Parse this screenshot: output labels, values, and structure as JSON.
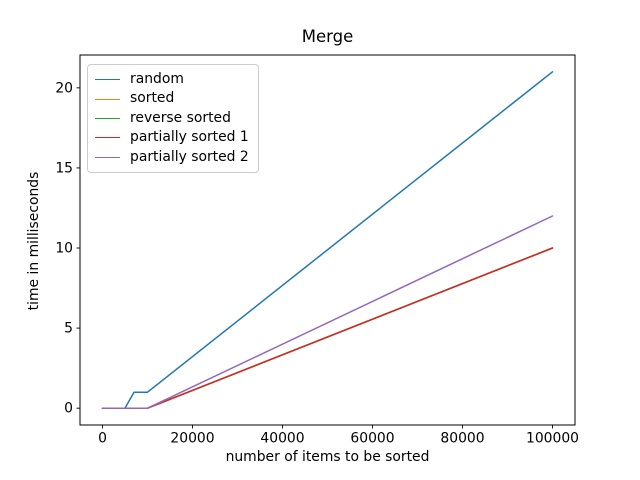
{
  "figure": {
    "background_color": "#ffffff",
    "axes_edge_color": "#000000",
    "legend_border_color": "#cccccc",
    "line_width": 1.5
  },
  "chart_data": {
    "type": "line",
    "title": "Merge",
    "xlabel": "number of items to be sorted",
    "ylabel": "time in milliseconds",
    "xlim": [
      -5000,
      105000
    ],
    "ylim": [
      -1.05,
      22.05
    ],
    "xticks": [
      0,
      20000,
      40000,
      60000,
      80000,
      100000
    ],
    "yticks": [
      0,
      5,
      10,
      15,
      20
    ],
    "grid": false,
    "legend_position": "upper left",
    "series": [
      {
        "name": "random",
        "color": "#1f77b4",
        "points": [
          [
            0,
            0
          ],
          [
            1000,
            0
          ],
          [
            3000,
            0
          ],
          [
            5000,
            0
          ],
          [
            7000,
            1
          ],
          [
            9000,
            1
          ],
          [
            10000,
            1
          ],
          [
            100000,
            21
          ]
        ]
      },
      {
        "name": "sorted",
        "color": "#ff7f0e",
        "points": [
          [
            0,
            0
          ],
          [
            5000,
            0
          ],
          [
            10000,
            0
          ],
          [
            100000,
            10
          ]
        ]
      },
      {
        "name": "reverse sorted",
        "color": "#2ca02c",
        "points": [
          [
            0,
            0
          ],
          [
            5000,
            0
          ],
          [
            10000,
            0
          ],
          [
            100000,
            10
          ]
        ]
      },
      {
        "name": "partially sorted 1",
        "color": "#d62728",
        "points": [
          [
            0,
            0
          ],
          [
            5000,
            0
          ],
          [
            10000,
            0
          ],
          [
            100000,
            10
          ]
        ]
      },
      {
        "name": "partially sorted 2",
        "color": "#9467bd",
        "points": [
          [
            0,
            0
          ],
          [
            5000,
            0
          ],
          [
            10000,
            0
          ],
          [
            100000,
            12
          ]
        ]
      }
    ]
  }
}
